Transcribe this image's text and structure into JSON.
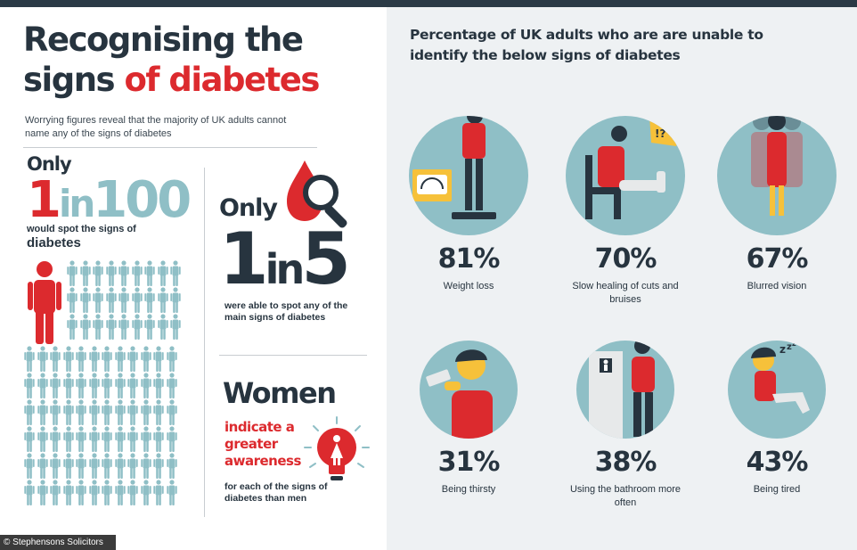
{
  "header": {
    "title_line1": "Recognising the",
    "title_line2_a": "signs ",
    "title_line2_b": "of diabetes",
    "subtitle": "Worrying figures reveal that the majority of UK adults cannot name any of the signs of diabetes"
  },
  "stat_1in100": {
    "only": "Only",
    "num1": "1",
    "in": "in",
    "num2": "100",
    "line1": "would spot the signs of",
    "line2": "diabetes"
  },
  "stat_1in5": {
    "only": "Only",
    "num1": "1",
    "in": "in",
    "num2": "5",
    "text": "were able to spot any of the main signs of diabetes"
  },
  "women": {
    "heading": "Women",
    "highlight": "indicate a greater awareness",
    "text": "for each of the signs of diabetes than men"
  },
  "right": {
    "title": "Percentage of UK adults who are are unable to identify the below signs of diabetes",
    "signs": [
      {
        "pct": "81%",
        "label": "Weight loss"
      },
      {
        "pct": "70%",
        "label": "Slow healing of cuts and bruises"
      },
      {
        "pct": "67%",
        "label": "Blurred vision"
      },
      {
        "pct": "31%",
        "label": "Being thirsty"
      },
      {
        "pct": "38%",
        "label": "Using the bathroom more often"
      },
      {
        "pct": "43%",
        "label": "Being tired"
      }
    ]
  },
  "footer": {
    "copyright": "© Stephensons Solicitors LLP"
  },
  "colors": {
    "red": "#dc2a2e",
    "teal": "#8fbfc6",
    "navy": "#27343f",
    "panel": "#eef1f3"
  }
}
